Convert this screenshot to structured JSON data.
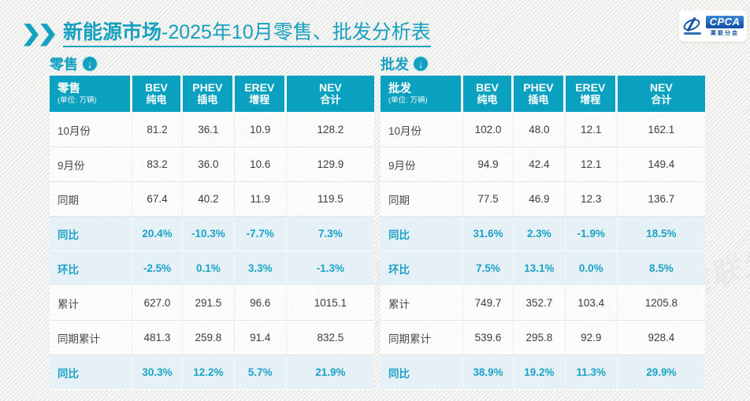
{
  "title": {
    "bold": "新能源市场",
    "rest": "-2025年10月零售、批发分析表"
  },
  "logo": {
    "text": "CPCA",
    "subtext": "乘联分会"
  },
  "watermark": "CPCA 乘联分会",
  "colors": {
    "accent_teal": "#09a1bf",
    "title_teal": "#17a0bf",
    "highlight_bg": "#e5f1f7",
    "highlight_text": "#1ba2c6",
    "body_text": "#3d3d3d",
    "logo_blue": "#0e4ea2"
  },
  "tables": [
    {
      "caption": "零售",
      "header": {
        "label": "零售",
        "unit": "(单位: 万辆)",
        "columns": [
          {
            "en": "BEV",
            "zh": "纯电"
          },
          {
            "en": "PHEV",
            "zh": "插电"
          },
          {
            "en": "EREV",
            "zh": "增程"
          },
          {
            "en": "NEV",
            "zh": "合计"
          }
        ]
      },
      "rows": [
        {
          "label": "10月份",
          "values": [
            "81.2",
            "36.1",
            "10.9",
            "128.2"
          ],
          "highlight": false
        },
        {
          "label": "9月份",
          "values": [
            "83.2",
            "36.0",
            "10.6",
            "129.9"
          ],
          "highlight": false
        },
        {
          "label": "同期",
          "values": [
            "67.4",
            "40.2",
            "11.9",
            "119.5"
          ],
          "highlight": false
        },
        {
          "label": "同比",
          "values": [
            "20.4%",
            "-10.3%",
            "-7.7%",
            "7.3%"
          ],
          "highlight": true
        },
        {
          "label": "环比",
          "values": [
            "-2.5%",
            "0.1%",
            "3.3%",
            "-1.3%"
          ],
          "highlight": true
        },
        {
          "label": "累计",
          "values": [
            "627.0",
            "291.5",
            "96.6",
            "1015.1"
          ],
          "highlight": false
        },
        {
          "label": "同期累计",
          "values": [
            "481.3",
            "259.8",
            "91.4",
            "832.5"
          ],
          "highlight": false
        },
        {
          "label": "同比",
          "values": [
            "30.3%",
            "12.2%",
            "5.7%",
            "21.9%"
          ],
          "highlight": true
        }
      ]
    },
    {
      "caption": "批发",
      "header": {
        "label": "批发",
        "unit": "(单位: 万辆)",
        "columns": [
          {
            "en": "BEV",
            "zh": "纯电"
          },
          {
            "en": "PHEV",
            "zh": "插电"
          },
          {
            "en": "EREV",
            "zh": "增程"
          },
          {
            "en": "NEV",
            "zh": "合计"
          }
        ]
      },
      "rows": [
        {
          "label": "10月份",
          "values": [
            "102.0",
            "48.0",
            "12.1",
            "162.1"
          ],
          "highlight": false
        },
        {
          "label": "9月份",
          "values": [
            "94.9",
            "42.4",
            "12.1",
            "149.4"
          ],
          "highlight": false
        },
        {
          "label": "同期",
          "values": [
            "77.5",
            "46.9",
            "12.3",
            "136.7"
          ],
          "highlight": false
        },
        {
          "label": "同比",
          "values": [
            "31.6%",
            "2.3%",
            "-1.9%",
            "18.5%"
          ],
          "highlight": true
        },
        {
          "label": "环比",
          "values": [
            "7.5%",
            "13.1%",
            "0.0%",
            "8.5%"
          ],
          "highlight": true
        },
        {
          "label": "累计",
          "values": [
            "749.7",
            "352.7",
            "103.4",
            "1205.8"
          ],
          "highlight": false
        },
        {
          "label": "同期累计",
          "values": [
            "539.6",
            "295.8",
            "92.9",
            "928.4"
          ],
          "highlight": false
        },
        {
          "label": "同比",
          "values": [
            "38.9%",
            "19.2%",
            "11.3%",
            "29.9%"
          ],
          "highlight": true
        }
      ]
    }
  ],
  "chart_data": [
    {
      "type": "table",
      "title": "零售",
      "unit": "万辆",
      "columns": [
        "BEV 纯电",
        "PHEV 插电",
        "EREV 增程",
        "NEV 合计"
      ],
      "rows": [
        {
          "label": "10月份",
          "values": [
            81.2,
            36.1,
            10.9,
            128.2
          ]
        },
        {
          "label": "9月份",
          "values": [
            83.2,
            36.0,
            10.6,
            129.9
          ]
        },
        {
          "label": "同期",
          "values": [
            67.4,
            40.2,
            11.9,
            119.5
          ]
        },
        {
          "label": "同比(%)",
          "values": [
            20.4,
            -10.3,
            -7.7,
            7.3
          ]
        },
        {
          "label": "环比(%)",
          "values": [
            -2.5,
            0.1,
            3.3,
            -1.3
          ]
        },
        {
          "label": "累计",
          "values": [
            627.0,
            291.5,
            96.6,
            1015.1
          ]
        },
        {
          "label": "同期累计",
          "values": [
            481.3,
            259.8,
            91.4,
            832.5
          ]
        },
        {
          "label": "累计同比(%)",
          "values": [
            30.3,
            12.2,
            5.7,
            21.9
          ]
        }
      ]
    },
    {
      "type": "table",
      "title": "批发",
      "unit": "万辆",
      "columns": [
        "BEV 纯电",
        "PHEV 插电",
        "EREV 增程",
        "NEV 合计"
      ],
      "rows": [
        {
          "label": "10月份",
          "values": [
            102.0,
            48.0,
            12.1,
            162.1
          ]
        },
        {
          "label": "9月份",
          "values": [
            94.9,
            42.4,
            12.1,
            149.4
          ]
        },
        {
          "label": "同期",
          "values": [
            77.5,
            46.9,
            12.3,
            136.7
          ]
        },
        {
          "label": "同比(%)",
          "values": [
            31.6,
            2.3,
            -1.9,
            18.5
          ]
        },
        {
          "label": "环比(%)",
          "values": [
            7.5,
            13.1,
            0.0,
            8.5
          ]
        },
        {
          "label": "累计",
          "values": [
            749.7,
            352.7,
            103.4,
            1205.8
          ]
        },
        {
          "label": "同期累计",
          "values": [
            539.6,
            295.8,
            92.9,
            928.4
          ]
        },
        {
          "label": "累计同比(%)",
          "values": [
            38.9,
            19.2,
            11.3,
            29.9
          ]
        }
      ]
    }
  ]
}
